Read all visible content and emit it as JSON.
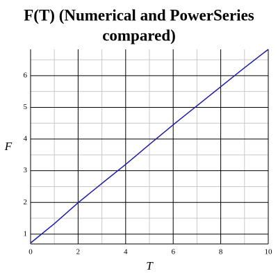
{
  "chart_data": {
    "type": "line",
    "title": [
      "F(T) (Numerical and PowerSeries",
      "compared)"
    ],
    "x_label": "T",
    "y_label": "F",
    "x": [
      0,
      1,
      2,
      3,
      4,
      5,
      6,
      7,
      8,
      9,
      10
    ],
    "series": [
      {
        "color": "#1a1aa6",
        "values": [
          0.72,
          1.33,
          1.99,
          2.6,
          3.2,
          3.83,
          4.45,
          5.05,
          5.65,
          6.25,
          6.83
        ]
      }
    ],
    "xlim": [
      0,
      10
    ],
    "xticks": [
      0,
      2,
      4,
      6,
      8,
      10
    ],
    "xminor": [
      1,
      3,
      5,
      7,
      9
    ],
    "ylim": [
      0.69,
      6.83
    ],
    "yticks": [
      1,
      2,
      3,
      4,
      5,
      6
    ],
    "yminor": [
      1.5,
      2.5,
      3.5,
      4.5,
      5.5,
      6.5
    ],
    "grid": true
  }
}
